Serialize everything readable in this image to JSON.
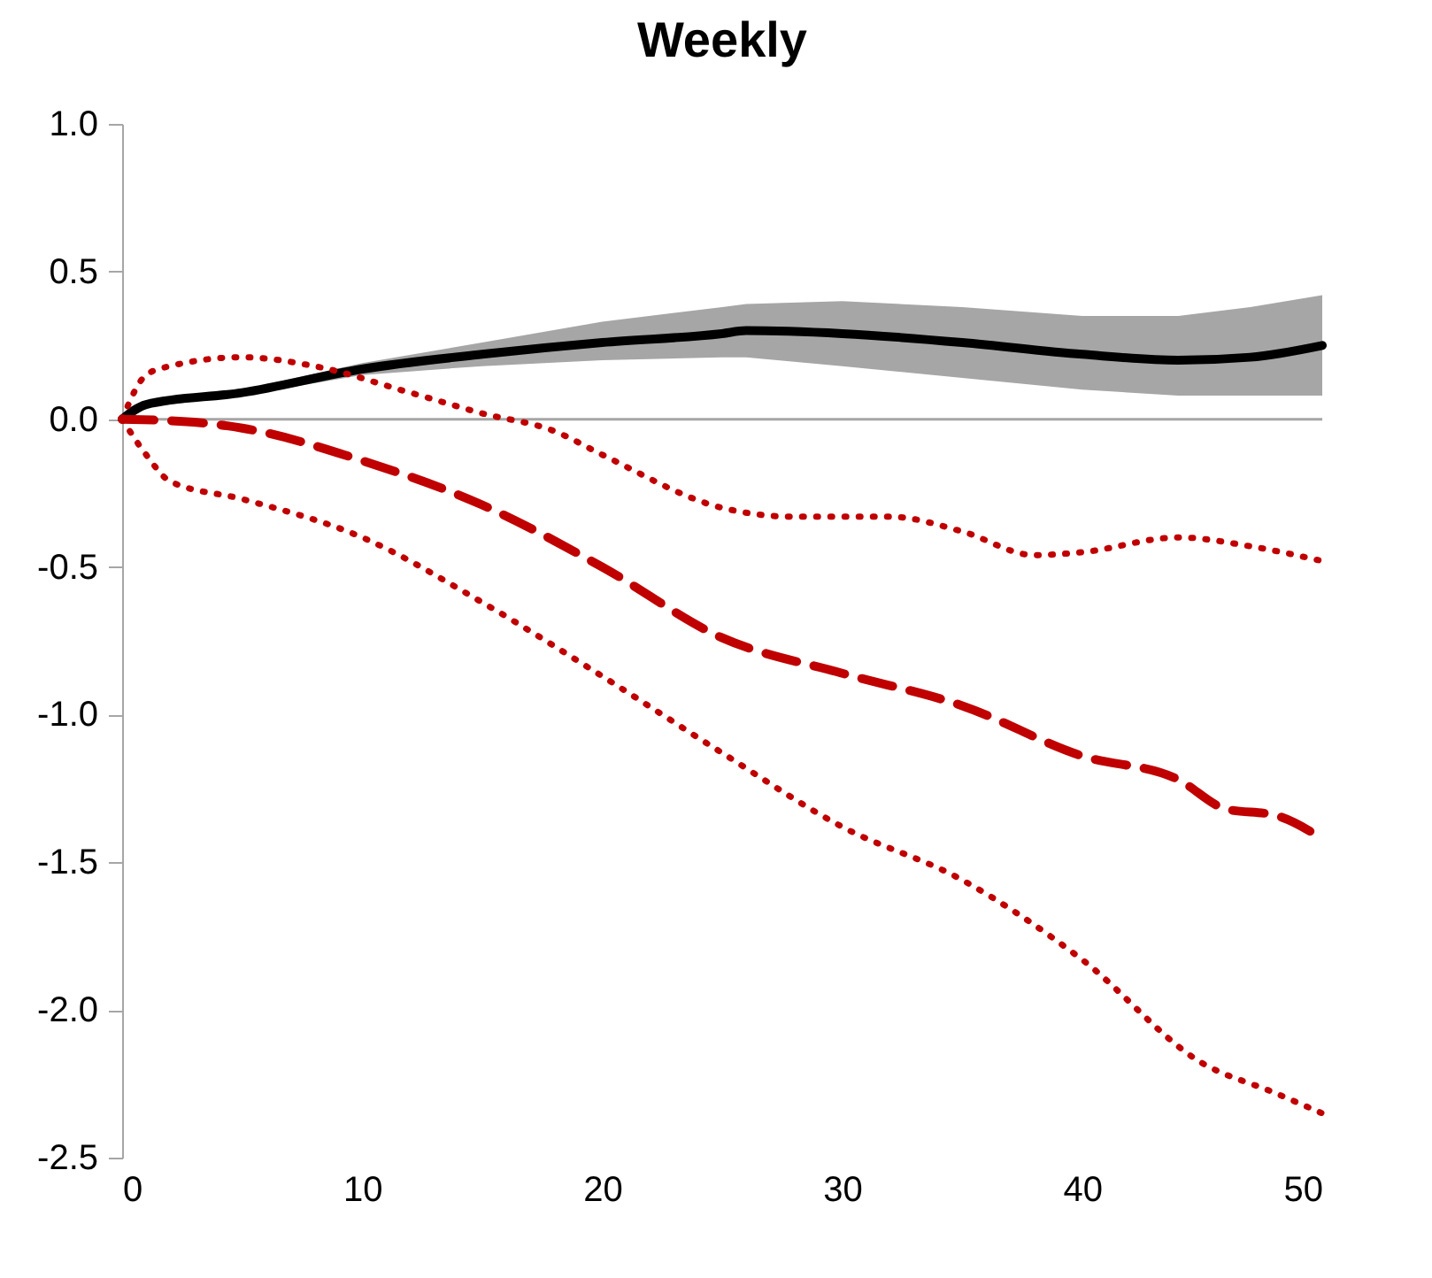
{
  "chart_data": {
    "type": "line",
    "title": "Weekly",
    "xlim": [
      0,
      50
    ],
    "xticks": [
      0,
      10,
      20,
      30,
      40,
      50
    ],
    "ylim": [
      -2.5,
      1.0
    ],
    "yticks": [
      {
        "value": -2.5,
        "label": "-2.5"
      },
      {
        "value": -2.0,
        "label": "-2.0"
      },
      {
        "value": -1.5,
        "label": "-1.5"
      },
      {
        "value": -1.0,
        "label": "-1.0"
      },
      {
        "value": -0.5,
        "label": "-0.5"
      },
      {
        "value": 0,
        "label": "0.0"
      },
      {
        "value": 0.5,
        "label": "0.5"
      },
      {
        "value": 1.0,
        "label": "1.0"
      }
    ],
    "grid": false,
    "ref_lines": [
      {
        "axis": "y",
        "value": 0,
        "color": "#a6a6a6",
        "line_style": "solid"
      }
    ],
    "series": [
      {
        "color": "#000000",
        "line_style": "solid",
        "x": [
          0,
          1,
          5,
          10,
          15,
          20,
          25,
          26,
          30,
          35,
          40,
          44,
          47,
          50
        ],
        "values": [
          0,
          0.05,
          0.09,
          0.17,
          0.22,
          0.26,
          0.29,
          0.3,
          0.29,
          0.26,
          0.22,
          0.2,
          0.21,
          0.25
        ],
        "lower": [
          0,
          0.04,
          0.08,
          0.15,
          0.18,
          0.2,
          0.21,
          0.21,
          0.18,
          0.14,
          0.1,
          0.08,
          0.08,
          0.08
        ],
        "upper": [
          0,
          0.06,
          0.1,
          0.19,
          0.26,
          0.33,
          0.38,
          0.39,
          0.4,
          0.38,
          0.35,
          0.35,
          0.38,
          0.42
        ]
      },
      {
        "color": "#c00000",
        "line_style": "dashed",
        "x": [
          0,
          3,
          5,
          10,
          15,
          20,
          25,
          30,
          35,
          40,
          44,
          46,
          48,
          50
        ],
        "values": [
          0,
          -0.01,
          -0.03,
          -0.14,
          -0.29,
          -0.5,
          -0.74,
          -0.86,
          -0.97,
          -1.14,
          -1.22,
          -1.32,
          -1.34,
          -1.42
        ]
      },
      {
        "color": "#c00000",
        "line_style": "dotted",
        "x": [
          0,
          1,
          2,
          5,
          8,
          12,
          15,
          18,
          20,
          25,
          28,
          32,
          35,
          38,
          40,
          44,
          47,
          50
        ],
        "values": [
          0,
          0.15,
          0.18,
          0.21,
          0.18,
          0.09,
          0.02,
          -0.04,
          -0.12,
          -0.3,
          -0.33,
          -0.33,
          -0.38,
          -0.46,
          -0.45,
          -0.4,
          -0.43,
          -0.48
        ]
      },
      {
        "color": "#c00000",
        "line_style": "dotted",
        "x": [
          0,
          1,
          2,
          5,
          10,
          15,
          20,
          25,
          30,
          35,
          40,
          45,
          48,
          50
        ],
        "values": [
          0,
          -0.12,
          -0.21,
          -0.27,
          -0.4,
          -0.62,
          -0.87,
          -1.13,
          -1.38,
          -1.56,
          -1.83,
          -2.18,
          -2.28,
          -2.35
        ]
      }
    ]
  }
}
